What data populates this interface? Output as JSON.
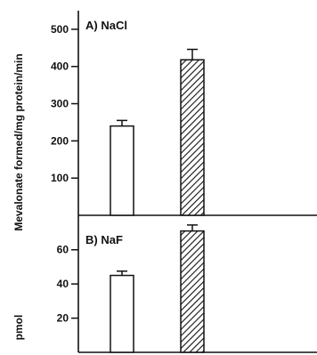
{
  "chart_data": [
    {
      "type": "bar",
      "panel_label": "A) NaCl",
      "categories": [
        "",
        ""
      ],
      "series": [
        {
          "values": [
            240,
            418
          ],
          "errors": [
            15,
            28
          ]
        }
      ],
      "bar_fills": [
        "open",
        "hatched"
      ],
      "ylim": [
        0,
        550
      ],
      "yticks": [
        100,
        200,
        300,
        400,
        500
      ],
      "ylabel": "pmol  Mevalonate formed/mg protein/min",
      "grid": false
    },
    {
      "type": "bar",
      "panel_label": "B) NaF",
      "categories": [
        "",
        ""
      ],
      "series": [
        {
          "values": [
            45,
            71
          ],
          "errors": [
            2.5,
            3.5
          ]
        }
      ],
      "bar_fills": [
        "open",
        "hatched"
      ],
      "ylim": [
        0,
        76
      ],
      "yticks": [
        20,
        40,
        60
      ],
      "grid": false
    }
  ],
  "ylabel_lines": [
    "Mevalonate formed/mg protein/min",
    "pmol"
  ],
  "colors": {
    "ink": "#111111",
    "open_bar": "#ffffff"
  }
}
